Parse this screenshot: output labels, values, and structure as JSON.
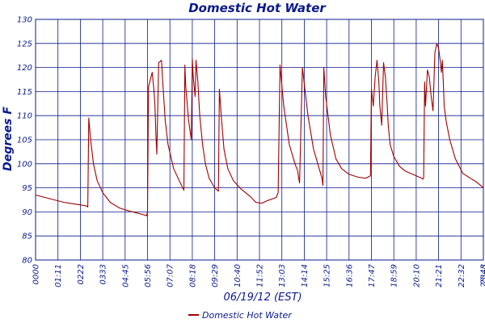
{
  "chart_data": {
    "type": "line",
    "title": "Domestic Hot Water",
    "xlabel": "06/19/12 (EST)",
    "ylabel": "Degrees F",
    "ylim": [
      80,
      130
    ],
    "xlim_hours": [
      0,
      24
    ],
    "grid": true,
    "legend_placement": "bottom-center",
    "colors": {
      "line": "#a00000",
      "grid": "#0b1a8c",
      "text": "#0b1a8c"
    },
    "yticks": [
      80,
      85,
      90,
      95,
      100,
      105,
      110,
      115,
      120,
      125,
      130
    ],
    "xtick_labels": [
      "0000",
      "01:11",
      "0222",
      "0333",
      "04:45",
      "05:56",
      "07:07",
      "08:18",
      "09:29",
      "10:40",
      "11:52",
      "13:03",
      "14:14",
      "15:25",
      "16:36",
      "17:47",
      "18:59",
      "20:10",
      "21:21",
      "22:32",
      "23:43",
      "2348"
    ],
    "series": [
      {
        "name": "Domestic Hot Water",
        "x_hours": [
          0.0,
          0.5,
          1.0,
          1.5,
          2.0,
          2.5,
          2.75,
          2.8,
          2.85,
          2.95,
          3.1,
          3.3,
          3.6,
          4.0,
          4.5,
          5.0,
          5.5,
          5.8,
          5.95,
          6.0,
          6.05,
          6.15,
          6.25,
          6.35,
          6.4,
          6.45,
          6.5,
          6.6,
          6.75,
          6.8,
          6.85,
          6.95,
          7.1,
          7.4,
          7.7,
          7.95,
          8.0,
          8.05,
          8.2,
          8.35,
          8.4,
          8.45,
          8.55,
          8.6,
          8.7,
          8.8,
          8.95,
          9.1,
          9.3,
          9.6,
          9.8,
          9.85,
          9.95,
          10.1,
          10.3,
          10.6,
          11.0,
          11.5,
          11.8,
          12.1,
          12.4,
          12.9,
          12.95,
          13.0,
          13.1,
          13.3,
          13.6,
          13.9,
          14.05,
          14.1,
          14.15,
          14.3,
          14.6,
          14.9,
          15.2,
          15.35,
          15.4,
          15.45,
          15.55,
          15.8,
          16.1,
          16.4,
          16.8,
          17.3,
          17.7,
          17.8,
          17.85,
          17.95,
          18.0,
          18.1,
          18.2,
          18.3,
          18.4,
          18.45,
          18.55,
          18.65,
          18.75,
          18.85,
          18.9,
          19.0,
          19.2,
          19.5,
          19.8,
          20.1,
          20.4,
          20.7,
          20.75,
          20.8,
          20.85,
          20.9,
          21.0,
          21.1,
          21.2,
          21.3,
          21.4,
          21.5,
          21.6,
          21.7,
          21.75,
          21.8,
          21.85,
          21.9,
          22.0,
          22.2,
          22.5,
          22.9,
          23.3,
          23.6,
          23.85,
          24.0
        ],
        "y": [
          93.5,
          93.0,
          92.5,
          92.0,
          91.7,
          91.4,
          91.2,
          91.0,
          109.5,
          105.0,
          100.0,
          96.5,
          94.0,
          92.0,
          90.8,
          90.2,
          89.7,
          89.4,
          89.2,
          90.0,
          116.0,
          117.5,
          119.0,
          115.0,
          112.0,
          106.0,
          102.0,
          121.0,
          121.5,
          118.0,
          115.0,
          109.0,
          104.0,
          99.0,
          96.5,
          94.5,
          120.5,
          116.0,
          109.0,
          105.0,
          121.8,
          118.0,
          114.0,
          121.5,
          117.0,
          110.0,
          104.0,
          100.0,
          97.0,
          95.0,
          94.3,
          115.5,
          110.0,
          103.0,
          99.0,
          96.5,
          94.8,
          93.2,
          92.0,
          91.8,
          92.3,
          93.0,
          93.5,
          94.0,
          120.5,
          112.0,
          104.0,
          100.0,
          98.5,
          97.0,
          96.0,
          120.0,
          110.0,
          103.0,
          99.0,
          97.0,
          95.5,
          120.0,
          114.0,
          106.0,
          101.0,
          99.0,
          97.8,
          97.2,
          97.0,
          97.2,
          97.3,
          97.5,
          115.5,
          112.0,
          118.0,
          121.5,
          117.0,
          112.0,
          108.0,
          121.0,
          118.0,
          112.0,
          108.0,
          104.0,
          101.5,
          99.5,
          98.5,
          98.0,
          97.5,
          97.0,
          96.8,
          97.0,
          117.0,
          112.0,
          119.5,
          118.0,
          114.0,
          111.0,
          123.0,
          125.0,
          124.0,
          121.0,
          119.0,
          121.5,
          117.0,
          112.0,
          109.0,
          105.0,
          101.0,
          98.0,
          97.0,
          96.3,
          95.5,
          95.0
        ]
      }
    ]
  }
}
